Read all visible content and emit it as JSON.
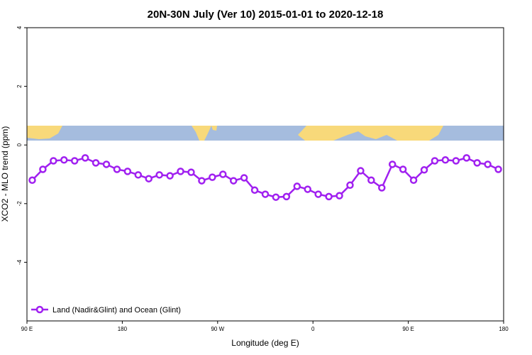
{
  "chart_data": {
    "type": "line",
    "title": "20N-30N July (Ver 10)   2015-01-01 to 2020-12-18",
    "x_label": "Longitude (deg E)",
    "y_label": "XCO2 - MLO trend (ppm)",
    "x": [
      95,
      105,
      115,
      125,
      135,
      145,
      155,
      165,
      175,
      185,
      195,
      205,
      215,
      225,
      235,
      245,
      255,
      265,
      275,
      285,
      295,
      305,
      315,
      325,
      335,
      345,
      355,
      365,
      375,
      385,
      395,
      405,
      415,
      425,
      435,
      445,
      455,
      465,
      475,
      485,
      495,
      505,
      515,
      525,
      535
    ],
    "series": [
      {
        "name": "Land (Nadir&Glint) and Ocean (Glint)",
        "color": "#a020f0",
        "values": [
          -1.2,
          -0.83,
          -0.54,
          -0.51,
          -0.54,
          -0.44,
          -0.61,
          -0.66,
          -0.83,
          -0.9,
          -1.02,
          -1.15,
          -1.02,
          -1.05,
          -0.9,
          -0.93,
          -1.22,
          -1.1,
          -1.0,
          -1.22,
          -1.12,
          -1.54,
          -1.68,
          -1.78,
          -1.76,
          -1.41,
          -1.51,
          -1.68,
          -1.76,
          -1.73,
          -1.37,
          -0.88,
          -1.2,
          -1.46,
          -0.66,
          -0.83,
          -1.2,
          -0.85,
          -0.54,
          -0.51,
          -0.54,
          -0.44,
          -0.61,
          -0.66,
          -0.83
        ]
      }
    ],
    "xlim": [
      90,
      540
    ],
    "xticks": [
      {
        "value": 90,
        "label": "90 E"
      },
      {
        "value": 180,
        "label": "180"
      },
      {
        "value": 270,
        "label": "90 W"
      },
      {
        "value": 360,
        "label": "0"
      },
      {
        "value": 450,
        "label": "90 E"
      },
      {
        "value": 540,
        "label": "180"
      }
    ],
    "ylim": [
      -6,
      4
    ],
    "yticks": [
      4,
      2,
      0,
      -2,
      -4
    ],
    "legend": "bottomleft"
  }
}
